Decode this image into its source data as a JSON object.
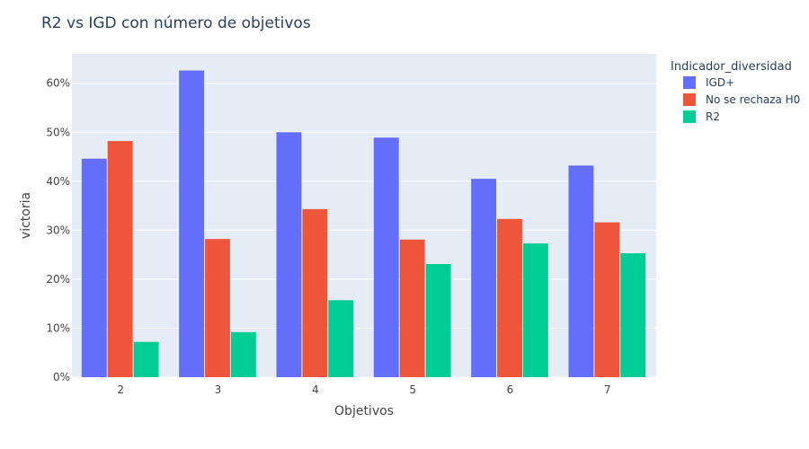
{
  "chart_data": {
    "type": "bar",
    "title": "R2 vs IGD con número de objetivos",
    "xlabel": "Objetivos",
    "ylabel": "victoria",
    "categories": [
      "2",
      "3",
      "4",
      "5",
      "6",
      "7"
    ],
    "ylim": [
      0,
      66
    ],
    "yticks": [
      0,
      10,
      20,
      30,
      40,
      50,
      60
    ],
    "ytick_suffix": "%",
    "grid": true,
    "legend_title": "Indicador_diversidad",
    "legend_position": "right",
    "series": [
      {
        "name": "IGD+",
        "color": "#636efa",
        "values": [
          44.6,
          62.6,
          50.0,
          48.9,
          40.5,
          43.2
        ]
      },
      {
        "name": "No se rechaza H0",
        "color": "#ef553b",
        "values": [
          48.2,
          28.2,
          34.3,
          28.1,
          32.3,
          31.6
        ]
      },
      {
        "name": "R2",
        "color": "#00cc96",
        "values": [
          7.2,
          9.2,
          15.7,
          23.1,
          27.3,
          25.3
        ]
      }
    ],
    "plot_bg": "#e5ecf6",
    "grid_color": "#ffffff",
    "text_color": "#444444",
    "title_color": "#2a3f5f"
  }
}
